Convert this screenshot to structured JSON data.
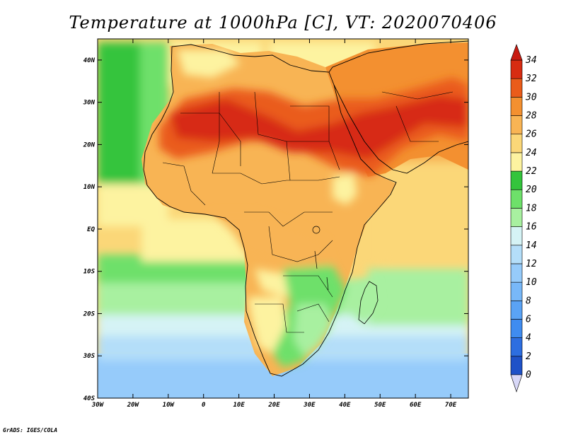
{
  "title": "Temperature at 1000hPa [C], VT: 2020070406",
  "credit": "GrADS: IGES/COLA",
  "map": {
    "type": "filled-contour-map",
    "variable": "Temperature at 1000hPa",
    "units": "C",
    "valid_time": "2020070406",
    "lon_range": [
      -30,
      75
    ],
    "lat_range": [
      -40,
      45
    ],
    "lon_ticks": [
      {
        "value": -30,
        "label": "30W"
      },
      {
        "value": -20,
        "label": "20W"
      },
      {
        "value": -10,
        "label": "10W"
      },
      {
        "value": 0,
        "label": "0"
      },
      {
        "value": 10,
        "label": "10E"
      },
      {
        "value": 20,
        "label": "20E"
      },
      {
        "value": 30,
        "label": "30E"
      },
      {
        "value": 40,
        "label": "40E"
      },
      {
        "value": 50,
        "label": "50E"
      },
      {
        "value": 60,
        "label": "60E"
      },
      {
        "value": 70,
        "label": "70E"
      }
    ],
    "lat_ticks": [
      {
        "value": 40,
        "label": "40N"
      },
      {
        "value": 30,
        "label": "30N"
      },
      {
        "value": 20,
        "label": "20N"
      },
      {
        "value": 10,
        "label": "10N"
      },
      {
        "value": 0,
        "label": "EQ"
      },
      {
        "value": -10,
        "label": "10S"
      },
      {
        "value": -20,
        "label": "20S"
      },
      {
        "value": -30,
        "label": "30S"
      },
      {
        "value": -40,
        "label": "40S"
      }
    ]
  },
  "colorbar": {
    "levels": [
      {
        "value": "0",
        "color": "#0a1f7a"
      },
      {
        "value": "2",
        "color": "#1f52c8"
      },
      {
        "value": "4",
        "color": "#2d6ee0"
      },
      {
        "value": "6",
        "color": "#3f8cf0"
      },
      {
        "value": "8",
        "color": "#5aa3f5"
      },
      {
        "value": "10",
        "color": "#78b8f8"
      },
      {
        "value": "12",
        "color": "#96cbfa"
      },
      {
        "value": "14",
        "color": "#b4def9"
      },
      {
        "value": "16",
        "color": "#d5f3f5"
      },
      {
        "value": "18",
        "color": "#a8f0a0"
      },
      {
        "value": "20",
        "color": "#6ee06a"
      },
      {
        "value": "22",
        "color": "#34c43c"
      },
      {
        "value": "24",
        "color": "#fdf3a0"
      },
      {
        "value": "26",
        "color": "#fbd778"
      },
      {
        "value": "28",
        "color": "#f8b454"
      },
      {
        "value": "30",
        "color": "#f39030"
      },
      {
        "value": "32",
        "color": "#ea5c1a"
      },
      {
        "value": "34",
        "color": "#d72c12"
      }
    ],
    "under_color": "#d8d8f8",
    "over_color": "#c81a10"
  }
}
